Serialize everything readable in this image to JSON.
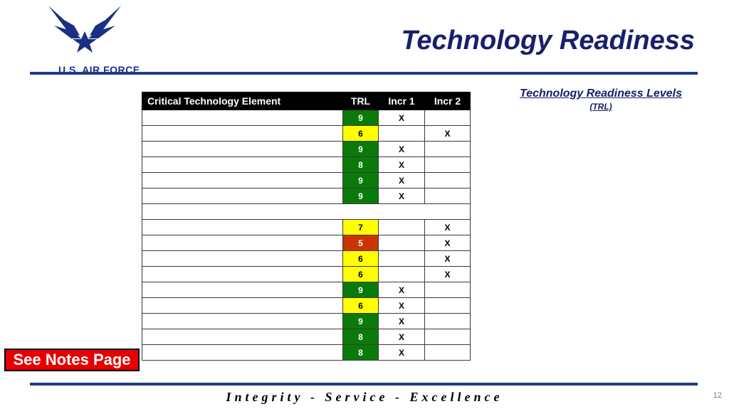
{
  "header": {
    "logo_text": "U.S. AIR FORCE",
    "title": "Technology Readiness"
  },
  "legend_box": {
    "title": "Technology Readiness Levels",
    "subtitle": "(TRL)"
  },
  "table": {
    "columns": [
      "Critical Technology Element",
      "TRL",
      "Incr 1",
      "Incr 2"
    ],
    "rows": [
      {
        "cte": "",
        "trl": "9",
        "status": "green",
        "incr1": "X",
        "incr2": ""
      },
      {
        "cte": "",
        "trl": "6",
        "status": "yellow",
        "incr1": "",
        "incr2": "X"
      },
      {
        "cte": "",
        "trl": "9",
        "status": "green",
        "incr1": "X",
        "incr2": ""
      },
      {
        "cte": "",
        "trl": "8",
        "status": "green",
        "incr1": "X",
        "incr2": ""
      },
      {
        "cte": "",
        "trl": "9",
        "status": "green",
        "incr1": "X",
        "incr2": ""
      },
      {
        "cte": "",
        "trl": "9",
        "status": "green",
        "incr1": "X",
        "incr2": ""
      },
      {
        "blank": true
      },
      {
        "cte": "",
        "trl": "7",
        "status": "yellow",
        "incr1": "",
        "incr2": "X"
      },
      {
        "cte": "",
        "trl": "5",
        "status": "red",
        "incr1": "",
        "incr2": "X"
      },
      {
        "cte": "",
        "trl": "6",
        "status": "yellow",
        "incr1": "",
        "incr2": "X"
      },
      {
        "cte": "",
        "trl": "6",
        "status": "yellow",
        "incr1": "",
        "incr2": "X"
      },
      {
        "cte": "",
        "trl": "9",
        "status": "green",
        "incr1": "X",
        "incr2": ""
      },
      {
        "cte": "",
        "trl": "6",
        "status": "yellow",
        "incr1": "X",
        "incr2": ""
      },
      {
        "cte": "",
        "trl": "9",
        "status": "green",
        "incr1": "X",
        "incr2": ""
      },
      {
        "cte": "",
        "trl": "8",
        "status": "green",
        "incr1": "X",
        "incr2": ""
      },
      {
        "cte": "",
        "trl": "8",
        "status": "green",
        "incr1": "X",
        "incr2": ""
      }
    ]
  },
  "notes_button": {
    "label": "See Notes Page"
  },
  "footer": {
    "motto": "Integrity - Service - Excellence",
    "page_number": "12"
  },
  "colors": {
    "green": "#0a7a0a",
    "yellow": "#ffff00",
    "red": "#cc3300",
    "brand_blue": "#1e3a8a",
    "title_blue": "#17206b"
  },
  "icons": {
    "logo": "air-force-wings-logo"
  }
}
